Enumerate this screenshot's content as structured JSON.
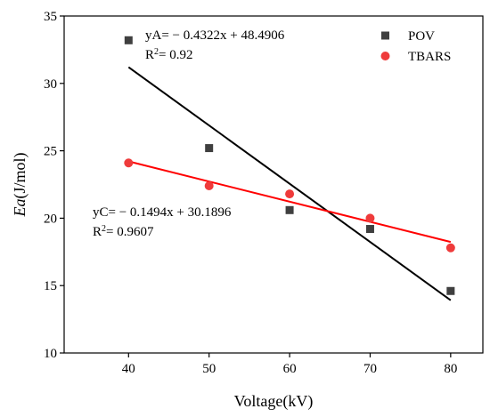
{
  "chart_data": {
    "type": "scatter",
    "xlabel": "Voltage(kV)",
    "ylabel_italic": "Ea",
    "ylabel_rest": "(J/mol)",
    "xlim": [
      32,
      84
    ],
    "ylim": [
      10,
      35
    ],
    "xticks": [
      40,
      50,
      60,
      70,
      80
    ],
    "yticks": [
      10,
      15,
      20,
      25,
      30,
      35
    ],
    "legend_position": "top-right",
    "series": [
      {
        "name": "POV",
        "marker": "square",
        "color": "#3f3f3f",
        "fit_color": "#000000",
        "x": [
          40,
          50,
          60,
          70,
          80
        ],
        "y": [
          33.2,
          25.2,
          20.6,
          19.2,
          14.6
        ],
        "fit": {
          "slope": -0.4322,
          "intercept": 48.4906
        }
      },
      {
        "name": "TBARS",
        "marker": "circle",
        "color": "#ef3b3b",
        "fit_color": "#ff0000",
        "x": [
          40,
          50,
          60,
          70,
          80
        ],
        "y": [
          24.1,
          22.4,
          21.8,
          20.0,
          17.8
        ],
        "fit": {
          "slope": -0.1494,
          "intercept": 30.1896
        }
      }
    ],
    "annotations": [
      {
        "series": "POV",
        "equation": "yA= − 0.4322x + 48.4906",
        "r2_prefix": "R",
        "r2_sup": "2",
        "r2_value": "= 0.92"
      },
      {
        "series": "TBARS",
        "equation": "yC= − 0.1494x + 30.1896",
        "r2_prefix": "R",
        "r2_sup": "2",
        "r2_value": "= 0.9607"
      }
    ]
  }
}
